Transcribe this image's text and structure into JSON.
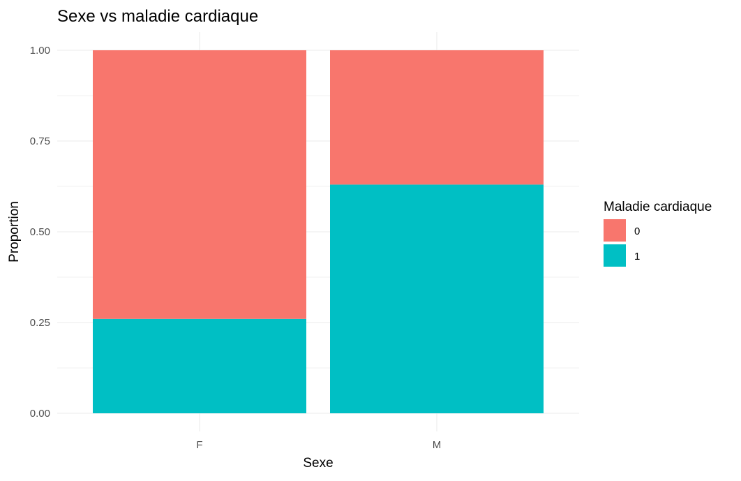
{
  "chart_data": {
    "type": "bar",
    "stacked": true,
    "title": "Sexe vs maladie cardiaque",
    "xlabel": "Sexe",
    "ylabel": "Proportion",
    "categories": [
      "F",
      "M"
    ],
    "ylim": [
      0,
      1
    ],
    "yticks": [
      0,
      0.25,
      0.5,
      0.75,
      1
    ],
    "ytick_labels": [
      "0.00",
      "0.25",
      "0.50",
      "0.75",
      "1.00"
    ],
    "grid": true,
    "legend": {
      "title": "Maladie cardiaque",
      "placement": "right"
    },
    "series": [
      {
        "name": "1",
        "values": [
          0.26,
          0.63
        ],
        "color": "#00BFC4"
      },
      {
        "name": "0",
        "values": [
          0.74,
          0.37
        ],
        "color": "#F8766D"
      }
    ],
    "legend_order": [
      "0",
      "1"
    ]
  }
}
